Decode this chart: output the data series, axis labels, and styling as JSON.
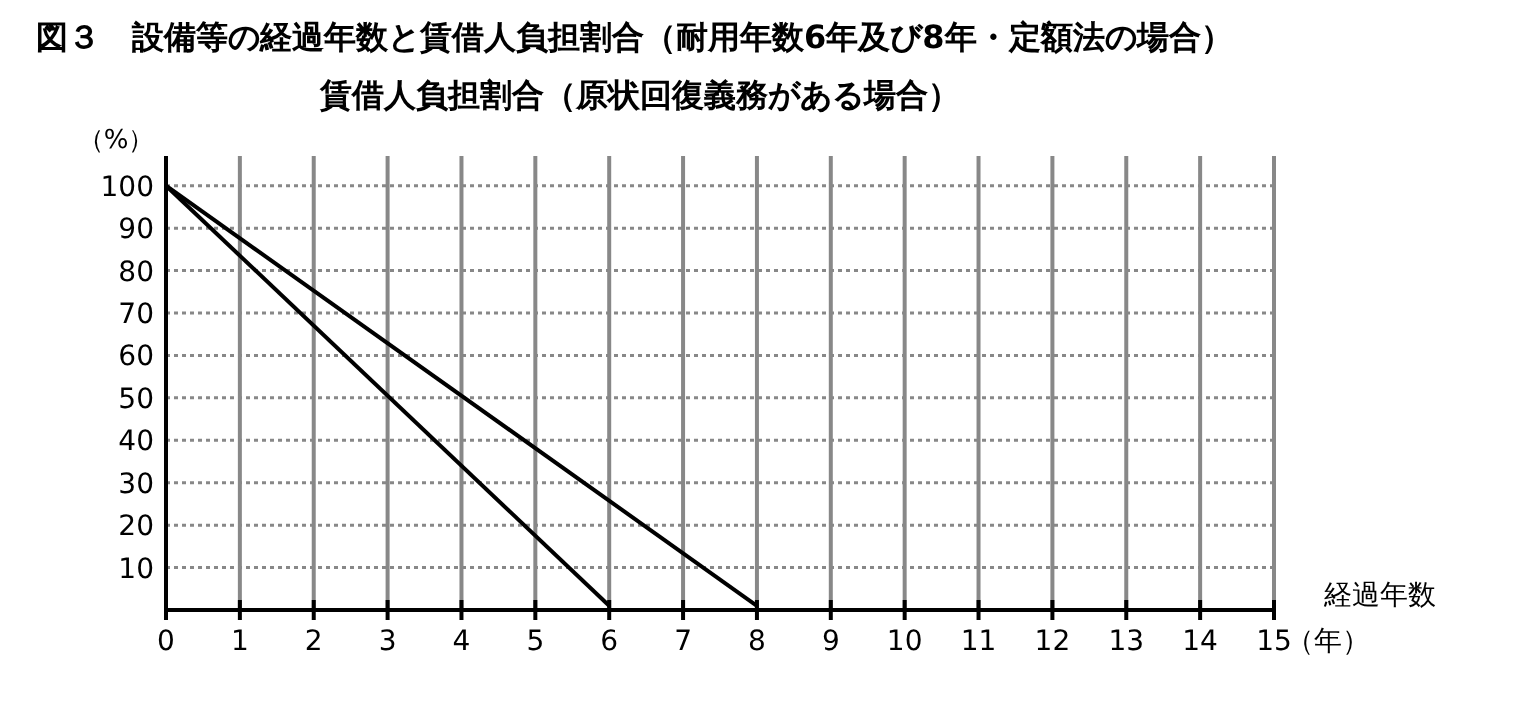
{
  "chart_data": {
    "type": "line",
    "title": "図３　設備等の経過年数と賃借人負担割合（耐用年数6年及び8年・定額法の場合）",
    "subtitle": "賃借人負担割合（原状回復義務がある場合）",
    "xlabel": "経過年数",
    "ylabel": "（%）",
    "annotations": [
      "（年）"
    ],
    "xlim": [
      0,
      15
    ],
    "xticks": [
      0,
      1,
      2,
      3,
      4,
      5,
      6,
      7,
      8,
      9,
      10,
      11,
      12,
      13,
      14,
      15
    ],
    "ylim": [
      0,
      107
    ],
    "yticks": [
      10,
      20,
      30,
      40,
      50,
      60,
      70,
      80,
      90,
      100
    ],
    "grid": true,
    "marker": "none",
    "line_style": "solid",
    "series": [
      {
        "color": "#000000",
        "x": [
          0,
          6
        ],
        "values": [
          100,
          1
        ]
      },
      {
        "color": "#000000",
        "x": [
          0,
          8
        ],
        "values": [
          100,
          1
        ]
      }
    ]
  }
}
